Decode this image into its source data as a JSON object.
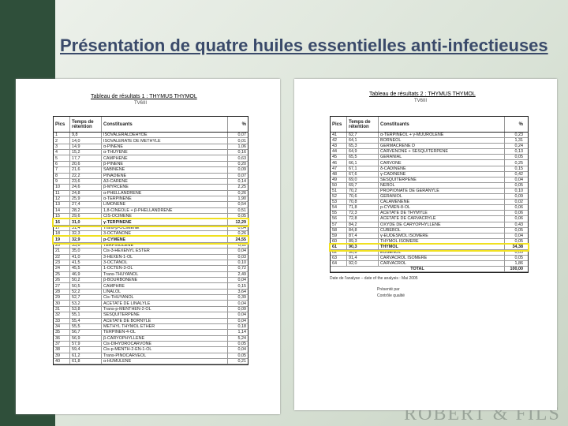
{
  "title": "Présentation de quatre huiles essentielles anti-infectieuses",
  "brand": "ROBERT & FILS",
  "table1": {
    "caption": "Tableau de résultats 1 : THYMUS THYMOL",
    "code": "TV6III",
    "headers": [
      "Pics",
      "Temps de rétention",
      "Constituants",
      "%"
    ],
    "rows": [
      [
        "1",
        "9,8",
        "ISOVALERALDEHYDE",
        "0,07"
      ],
      [
        "2",
        "14,0",
        "ISOVALERATE DE METHYLE",
        "0,01"
      ],
      [
        "3",
        "14,9",
        "α-PINENE",
        "1,06"
      ],
      [
        "4",
        "15,2",
        "α-THUYENE",
        "0,16"
      ],
      [
        "5",
        "17,7",
        "CAMPHENE",
        "0,63"
      ],
      [
        "6",
        "20,6",
        "β-PINENE",
        "0,20"
      ],
      [
        "7",
        "21,6",
        "SABINENE",
        "0,09"
      ],
      [
        "8",
        "22,2",
        "PINADIENE",
        "0,07"
      ],
      [
        "9",
        "23,6",
        "Δ3-CARENE",
        "0,14"
      ],
      [
        "10",
        "24,6",
        "β-MYRCENE",
        "2,25"
      ],
      [
        "11",
        "24,8",
        "α-PHELLANDRENE",
        "0,26"
      ],
      [
        "12",
        "25,9",
        "α-TERPINENE",
        "1,90"
      ],
      [
        "13",
        "27,4",
        "LIMONENE",
        "0,54"
      ],
      [
        "14",
        "28,2",
        "1,8-CINEOLE + β-PHELLANDRENE",
        "0,51"
      ],
      [
        "15",
        "29,6",
        "CIS-OCIMENE",
        "0,05"
      ],
      [
        "16",
        "31,0",
        "γ-TERPINENE",
        "12,29"
      ],
      [
        "17",
        "31,4",
        "Trans-β-OCIMENE",
        "0,04"
      ],
      [
        "18",
        "32,3",
        "3-OCTANONE",
        "0,26"
      ],
      [
        "19",
        "32,9",
        "p-CYMENE",
        "24,55"
      ],
      [
        "20",
        "33,6",
        "TERPINOLENE",
        "0,11"
      ],
      [
        "21",
        "35,0",
        "Cis-3-HEXENYL ESTER",
        "0,04"
      ],
      [
        "22",
        "41,0",
        "3-HEXEN-1-OL",
        "0,03"
      ],
      [
        "23",
        "41,5",
        "3-OCTANOL",
        "0,10"
      ],
      [
        "24",
        "45,5",
        "1-OCTEN-3-OL",
        "0,72"
      ],
      [
        "25",
        "46,9",
        "Trans-THUYANOL",
        "2,49"
      ],
      [
        "26",
        "50,2",
        "β-BOURBONENE",
        "0,04"
      ],
      [
        "27",
        "50,5",
        "CAMPHRE",
        "0,15"
      ],
      [
        "28",
        "52,2",
        "LINALOL",
        "3,64"
      ],
      [
        "29",
        "52,7",
        "Cis-THUYANOL",
        "0,39"
      ],
      [
        "30",
        "53,2",
        "ACETATE DE LINALYLE",
        "0,04"
      ],
      [
        "31",
        "53,8",
        "Trans-p-MENTHEN-2-OL",
        "0,09"
      ],
      [
        "32",
        "55,1",
        "SESQUITERPENE",
        "0,04"
      ],
      [
        "33",
        "55,4",
        "ACETATE DE BORNYLE",
        "0,04"
      ],
      [
        "34",
        "55,5",
        "METHYL THYMOL ETHER",
        "0,18"
      ],
      [
        "35",
        "56,7",
        "TERPINEN-4-OL",
        "1,14"
      ],
      [
        "36",
        "56,9",
        "β-CARYOPHYLLENE",
        "5,24"
      ],
      [
        "37",
        "57,9",
        "Cis-DIHYDROCARVONE",
        "0,05"
      ],
      [
        "38",
        "59,4",
        "Cis-p-MENTH-2-EN-1-OL",
        "0,04"
      ],
      [
        "39",
        "61,2",
        "Trans-PINOCARVEOL",
        "0,05"
      ],
      [
        "40",
        "61,8",
        "α-HUMULENE",
        "0,21"
      ]
    ]
  },
  "table2": {
    "caption": "Tableau de résultats 2 : THYMUS THYMOL",
    "code": "TV6III",
    "headers": [
      "Pics",
      "Temps de rétention",
      "Constituants",
      "%"
    ],
    "rows": [
      [
        "41",
        "62,7",
        "α-TERPINEOL + γ-MUUROLENE",
        "0,23"
      ],
      [
        "42",
        "64,1",
        "BORNEOL",
        "1,31"
      ],
      [
        "43",
        "65,3",
        "GERMACRENE D",
        "0,24"
      ],
      [
        "44",
        "64,9",
        "CARVENONE + SESQUITERPENE",
        "0,13"
      ],
      [
        "45",
        "65,5",
        "GERANIAL",
        "0,05"
      ],
      [
        "46",
        "66,1",
        "CARVONE",
        "0,25"
      ],
      [
        "47",
        "67,1",
        "δ-CADINENE",
        "0,15"
      ],
      [
        "48",
        "67,6",
        "γ-CADINENE",
        "0,42"
      ],
      [
        "49",
        "69,0",
        "SESQUITERPENE",
        "0,04"
      ],
      [
        "50",
        "69,7",
        "NEROL",
        "0,05"
      ],
      [
        "51",
        "70,2",
        "PROPIONATE DE GERANYLE",
        "0,10"
      ],
      [
        "52",
        "70,6",
        "GERANIOL",
        "0,09"
      ],
      [
        "53",
        "70,8",
        "CALAMENENE",
        "0,02"
      ],
      [
        "54",
        "71,8",
        "p-CYMEN-8-OL",
        "0,06"
      ],
      [
        "55",
        "72,3",
        "ACETATE DE THYMYLE",
        "0,06"
      ],
      [
        "56",
        "72,8",
        "ACETATE DE CARVACRYLE",
        "0,06"
      ],
      [
        "57",
        "84,2",
        "OXYDE DE CARYOPHYLLENE",
        "0,43"
      ],
      [
        "58",
        "84,8",
        "CUBEBOL",
        "0,05"
      ],
      [
        "59",
        "87,4",
        "γ-EUDESMOL ISOMERE",
        "0,04"
      ],
      [
        "60",
        "89,3",
        "THYMOL ISOMERE",
        "0,05"
      ],
      [
        "61",
        "90,3",
        "THYMOL",
        "34,38"
      ],
      [
        "62",
        "90,8",
        "EUGENOL",
        "0,05"
      ],
      [
        "63",
        "91,4",
        "CARVACROL ISOMERE",
        "0,05"
      ],
      [
        "64",
        "92,0",
        "CARVACROL",
        "1,86"
      ]
    ],
    "total": [
      "TOTAL",
      "100,00"
    ],
    "notes": [
      "Date de l'analyse – date of the analysis : Mai 2005",
      "Présenté par",
      "Contrôle qualité"
    ]
  }
}
